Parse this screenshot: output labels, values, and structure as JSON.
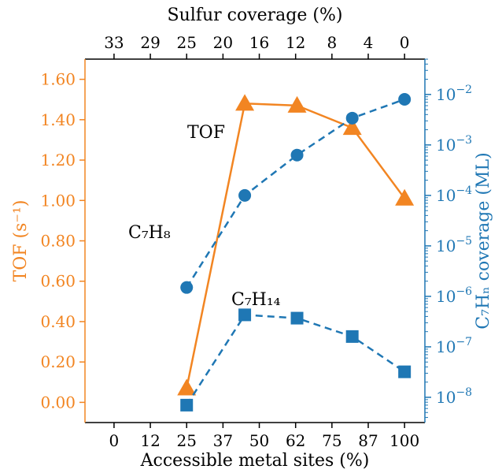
{
  "chart_data": {
    "type": "line",
    "title": "",
    "xlabel": "Accessible metal sites (%)",
    "x_ticks": [
      "0",
      "12",
      "25",
      "37",
      "50",
      "62",
      "75",
      "87",
      "100"
    ],
    "x_lim": [
      -10,
      107
    ],
    "top_xlabel": "Sulfur coverage (%)",
    "top_ticks": [
      "33",
      "29",
      "25",
      "20",
      "16",
      "12",
      "8",
      "4",
      "0"
    ],
    "left_ylabel": "TOF (s⁻¹)",
    "left_ticks": [
      "0.00",
      "0.20",
      "0.40",
      "0.60",
      "0.80",
      "1.00",
      "1.20",
      "1.40",
      "1.60"
    ],
    "left_ylim": [
      -0.1,
      1.7
    ],
    "right_ylabel": "C₇Hₙ coverage (ML)",
    "right_scale": "log",
    "right_ylim_exp": [
      -8.5,
      -1.3
    ],
    "right_ticks": [
      {
        "exp": -8,
        "label": "10",
        "sup": "−8"
      },
      {
        "exp": -7,
        "label": "10",
        "sup": "−7"
      },
      {
        "exp": -6,
        "label": "10",
        "sup": "−6"
      },
      {
        "exp": -5,
        "label": "10",
        "sup": "−5"
      },
      {
        "exp": -4,
        "label": "10",
        "sup": "−4"
      },
      {
        "exp": -3,
        "label": "10",
        "sup": "−3"
      },
      {
        "exp": -2,
        "label": "10",
        "sup": "−2"
      }
    ],
    "series": [
      {
        "name": "TOF",
        "axis": "left",
        "marker": "triangle",
        "line": "solid",
        "color": "#f28522",
        "x": [
          25,
          45,
          63,
          82,
          100
        ],
        "y": [
          0.07,
          1.48,
          1.47,
          1.36,
          1.01
        ]
      },
      {
        "name": "C₇H₈",
        "axis": "right",
        "marker": "circle",
        "line": "dashed",
        "color": "#1f77b4",
        "x": [
          25,
          45,
          63,
          82,
          100
        ],
        "y": [
          1.5e-06,
          0.0001,
          0.00063,
          0.0034,
          0.008
        ]
      },
      {
        "name": "C₇H₁₄",
        "axis": "right",
        "marker": "square",
        "line": "dashed",
        "color": "#1f77b4",
        "x": [
          25,
          45,
          63,
          82,
          100
        ],
        "y": [
          7e-09,
          4.3e-07,
          3.7e-07,
          1.6e-07,
          3.2e-08
        ]
      }
    ],
    "annotations": {
      "tof": "TOF",
      "c7h8": "C₇H₈",
      "c7h14": "C₇H₁₄"
    },
    "colors": {
      "left_axis": "#f28522",
      "right_axis": "#1f77b4",
      "frame": "#000000"
    },
    "grid": false
  }
}
